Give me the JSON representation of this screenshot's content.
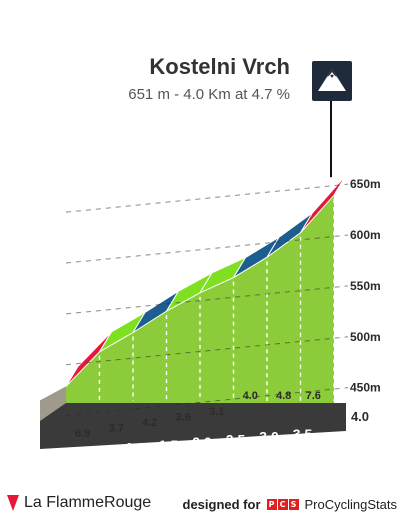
{
  "header": {
    "title": "Kostelni Vrch",
    "subtitle": "651 m - 4.0 Km at 4.7 %"
  },
  "summit_icon": "mountain-summit-icon",
  "chart_data": {
    "type": "area",
    "title": "Kostelni Vrch",
    "subtitle": "651 m - 4.0 Km at 4.7 %",
    "distance_total_km": 4.0,
    "y_ticks": [
      "450m",
      "500m",
      "550m",
      "600m",
      "650m"
    ],
    "y_tick_values": [
      450,
      500,
      550,
      600,
      650
    ],
    "ylim": [
      420,
      660
    ],
    "x_tick_labels": [
      "0.5",
      "1.0",
      "1.5",
      "2.0",
      "2.5",
      "3.0",
      "3.5",
      "4.0"
    ],
    "x_tick_values": [
      0.5,
      1.0,
      1.5,
      2.0,
      2.5,
      3.0,
      3.5,
      4.0
    ],
    "segments": [
      {
        "from_km": 0.0,
        "to_km": 0.5,
        "gradient": "6.9",
        "color": "#e8163a"
      },
      {
        "from_km": 0.5,
        "to_km": 1.0,
        "gradient": "3.7",
        "color": "#7ee021"
      },
      {
        "from_km": 1.0,
        "to_km": 1.5,
        "gradient": "4.2",
        "color": "#1c5e8f"
      },
      {
        "from_km": 1.5,
        "to_km": 2.0,
        "gradient": "3.6",
        "color": "#7ee021"
      },
      {
        "from_km": 2.0,
        "to_km": 2.5,
        "gradient": "3.1",
        "color": "#7ee021"
      },
      {
        "from_km": 2.5,
        "to_km": 3.0,
        "gradient": "4.0",
        "color": "#1c5e8f"
      },
      {
        "from_km": 3.0,
        "to_km": 3.5,
        "gradient": "4.8",
        "color": "#1c5e8f"
      },
      {
        "from_km": 3.5,
        "to_km": 4.0,
        "gradient": "7.6",
        "color": "#e8163a"
      }
    ],
    "elevation_points": [
      {
        "km": 0.0,
        "alt": 463
      },
      {
        "km": 0.5,
        "alt": 497
      },
      {
        "km": 1.0,
        "alt": 516
      },
      {
        "km": 1.5,
        "alt": 537
      },
      {
        "km": 2.0,
        "alt": 555
      },
      {
        "km": 2.5,
        "alt": 570
      },
      {
        "km": 3.0,
        "alt": 590
      },
      {
        "km": 3.5,
        "alt": 614
      },
      {
        "km": 4.0,
        "alt": 651
      }
    ],
    "colors": {
      "face": "#8ccc3a",
      "base": "#3a3a3a",
      "wall": "#a09a8c",
      "easy": "#7ee021",
      "medium": "#1c5e8f",
      "hard": "#e8163a"
    },
    "grid": true
  },
  "footer": {
    "brand": "La FlammeRouge",
    "designed_for": "designed for",
    "pcs_letters": [
      "P",
      "C",
      "S"
    ],
    "pcs_name": "ProCyclingStats"
  }
}
